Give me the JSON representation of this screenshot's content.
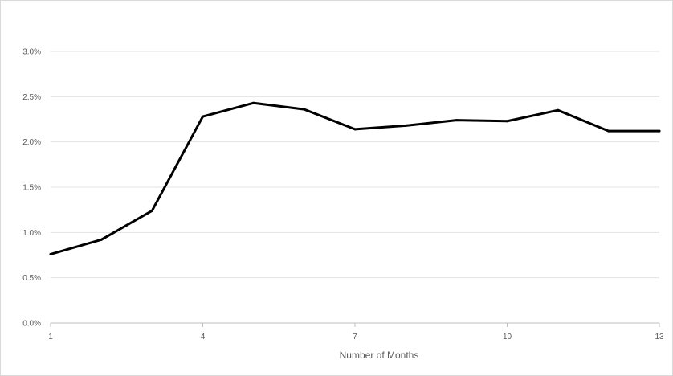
{
  "chart_data": {
    "type": "line",
    "title": "",
    "xlabel": "Number of Months",
    "ylabel": "",
    "x": [
      1,
      2,
      3,
      4,
      5,
      6,
      7,
      8,
      9,
      10,
      11,
      12,
      13
    ],
    "series": [
      {
        "values": [
          0.76,
          0.92,
          1.24,
          2.28,
          2.43,
          2.36,
          2.14,
          2.18,
          2.24,
          2.23,
          2.35,
          2.12,
          2.12
        ],
        "color": "#000000"
      }
    ],
    "x_ticks": [
      1,
      4,
      7,
      10,
      13
    ],
    "x_tick_labels": [
      "1",
      "4",
      "7",
      "10",
      "13"
    ],
    "y_ticks": [
      0,
      0.5,
      1.0,
      1.5,
      2.0,
      2.5,
      3.0
    ],
    "y_tick_labels": [
      "0.0%",
      "0.5%",
      "1.0%",
      "1.5%",
      "2.0%",
      "2.5%",
      "3.0%"
    ],
    "xlim": [
      1,
      13
    ],
    "ylim": [
      0,
      3.0
    ],
    "grid": true,
    "legend": "none"
  }
}
